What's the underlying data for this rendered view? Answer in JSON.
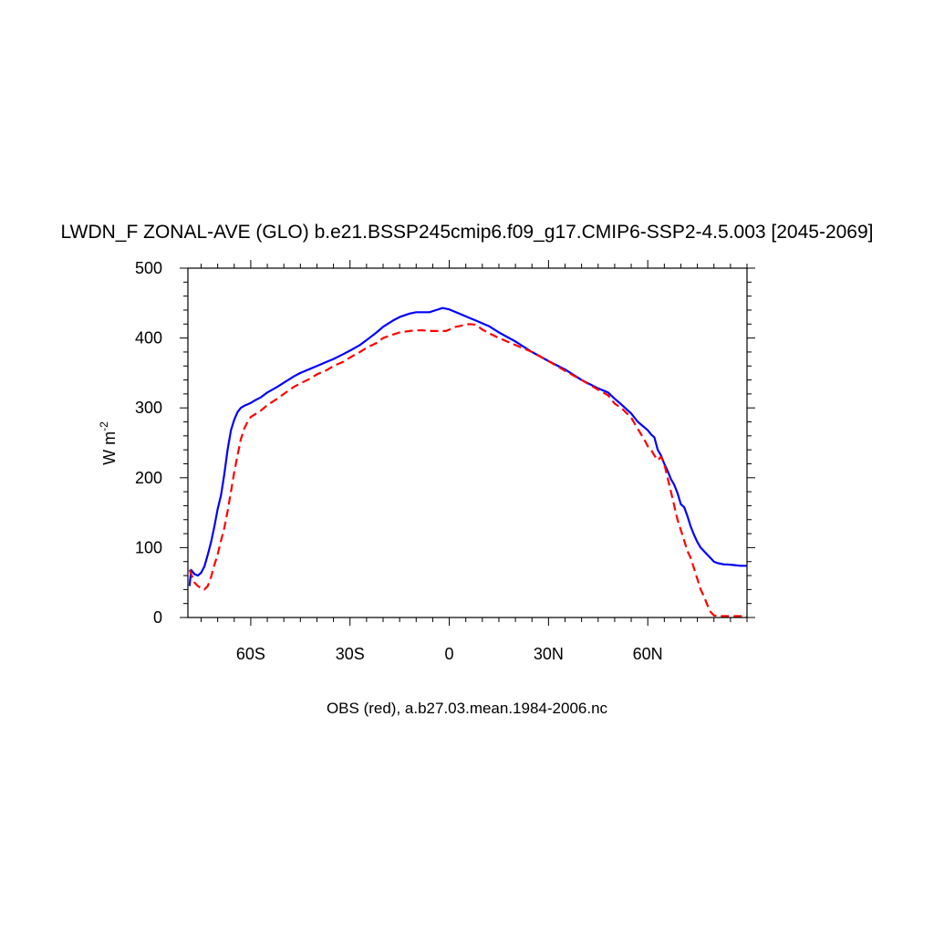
{
  "chart_data": {
    "type": "line",
    "title": "LWDN_F ZONAL-AVE (GLO) b.e21.BSSP245cmip6.f09_g17.CMIP6-SSP2-4.5.003 [2045-2069]",
    "ylabel_main": "W m",
    "ylabel_sup": "-2",
    "xlabel": "",
    "caption": "OBS (red), a.b27.03.mean.1984-2006.nc",
    "xlim": [
      -79,
      90
    ],
    "ylim": [
      0,
      500
    ],
    "x_ticks": [
      {
        "value": -60,
        "label": "60S"
      },
      {
        "value": -30,
        "label": "30S"
      },
      {
        "value": 0,
        "label": "0"
      },
      {
        "value": 30,
        "label": "30N"
      },
      {
        "value": 60,
        "label": "60N"
      }
    ],
    "y_ticks": [
      {
        "value": 0,
        "label": "0"
      },
      {
        "value": 100,
        "label": "100"
      },
      {
        "value": 200,
        "label": "200"
      },
      {
        "value": 300,
        "label": "300"
      },
      {
        "value": 400,
        "label": "400"
      },
      {
        "value": 500,
        "label": "500"
      }
    ],
    "grid": false,
    "series": [
      {
        "color": "#0000ff",
        "dash": "solid",
        "x": [
          -78.5,
          -78,
          -77,
          -76,
          -75,
          -74,
          -73,
          -72,
          -71,
          -70,
          -69,
          -68,
          -67,
          -66,
          -65,
          -64,
          -63,
          -62,
          -61,
          -60,
          -59,
          -57,
          -55,
          -52,
          -50,
          -47,
          -45,
          -42,
          -40,
          -37,
          -35,
          -32,
          -30,
          -27,
          -25,
          -22,
          -20,
          -17,
          -15,
          -12,
          -10,
          -8,
          -6,
          -4,
          -2,
          0,
          2,
          4,
          6,
          8,
          10,
          12,
          15,
          20,
          25,
          30,
          35,
          40,
          45,
          48,
          50,
          52,
          55,
          57,
          59,
          60,
          61,
          62,
          63,
          64,
          65,
          66,
          67,
          68,
          69,
          70,
          71,
          72,
          73,
          74,
          75,
          76,
          77,
          78,
          79,
          80,
          81,
          82,
          83,
          84,
          86,
          88,
          90
        ],
        "y": [
          45,
          68,
          62,
          60,
          64,
          73,
          90,
          108,
          130,
          155,
          175,
          205,
          240,
          268,
          283,
          294,
          300,
          303,
          305,
          307,
          310,
          315,
          322,
          330,
          336,
          345,
          350,
          356,
          360,
          366,
          370,
          377,
          382,
          390,
          397,
          408,
          416,
          425,
          430,
          435,
          437,
          437,
          437,
          440,
          443,
          441,
          437,
          433,
          429,
          425,
          421,
          417,
          408,
          395,
          380,
          367,
          355,
          340,
          328,
          322,
          313,
          305,
          292,
          280,
          272,
          268,
          262,
          258,
          240,
          232,
          220,
          210,
          198,
          190,
          178,
          162,
          158,
          145,
          130,
          118,
          108,
          100,
          95,
          90,
          85,
          80,
          78,
          77,
          76,
          76,
          75,
          74,
          74
        ]
      },
      {
        "color": "#ff0000",
        "dash": "dashed",
        "x": [
          -78.5,
          -77,
          -76,
          -75,
          -74,
          -73,
          -72,
          -71,
          -70,
          -69,
          -68,
          -67,
          -66,
          -65,
          -64,
          -63,
          -62,
          -61,
          -60,
          -59,
          -57,
          -55,
          -52,
          -50,
          -47,
          -45,
          -42,
          -40,
          -37,
          -35,
          -32,
          -30,
          -27,
          -25,
          -22,
          -20,
          -17,
          -15,
          -12,
          -10,
          -8,
          -5,
          -3,
          -1,
          0,
          2,
          4,
          6,
          8,
          10,
          12,
          15,
          20,
          25,
          30,
          35,
          40,
          45,
          48,
          50,
          52,
          55,
          57,
          59,
          60,
          61,
          62,
          63,
          64,
          65,
          66,
          67,
          68,
          69,
          70,
          71,
          72,
          73,
          74,
          75,
          76,
          77,
          78,
          79,
          80,
          81,
          82,
          83,
          84,
          86,
          88,
          90
        ],
        "y": [
          68,
          50,
          45,
          42,
          40,
          45,
          58,
          75,
          90,
          110,
          128,
          152,
          180,
          208,
          232,
          255,
          270,
          280,
          287,
          290,
          296,
          304,
          313,
          320,
          330,
          335,
          342,
          348,
          354,
          360,
          366,
          372,
          380,
          386,
          393,
          400,
          405,
          408,
          410,
          411,
          411,
          410,
          410,
          410,
          412,
          416,
          418,
          420,
          419,
          412,
          407,
          400,
          390,
          380,
          367,
          353,
          340,
          326,
          318,
          306,
          300,
          286,
          270,
          254,
          245,
          240,
          232,
          225,
          230,
          220,
          200,
          180,
          160,
          140,
          125,
          110,
          95,
          85,
          70,
          55,
          40,
          30,
          18,
          8,
          3,
          2,
          2,
          2,
          2,
          2,
          2,
          2
        ]
      }
    ]
  }
}
